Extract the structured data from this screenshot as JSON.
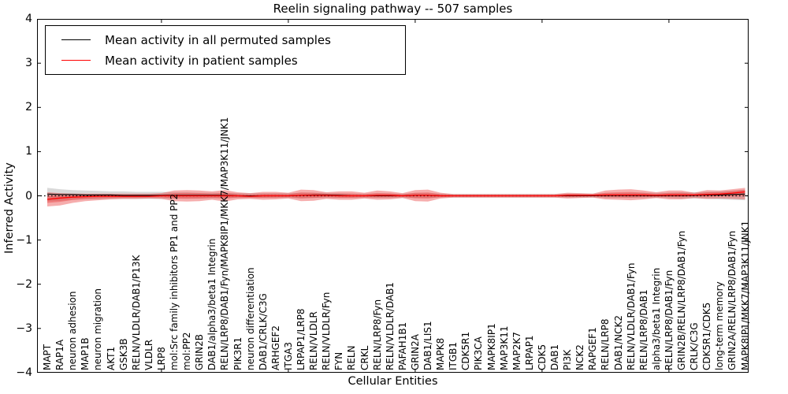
{
  "title": "Reelin signaling pathway -- 507 samples",
  "axes": {
    "xlabel": "Cellular Entities",
    "ylabel": "Inferred Activity"
  },
  "legend": {
    "items": [
      {
        "label": "Mean activity in all permuted samples",
        "color": "#000000"
      },
      {
        "label": "Mean activity in patient samples",
        "color": "#ff0000"
      }
    ]
  },
  "chart_data": {
    "type": "line",
    "title": "Reelin signaling pathway -- 507 samples",
    "xlabel": "Cellular Entities",
    "ylabel": "Inferred Activity",
    "ylim": [
      -4,
      4
    ],
    "yticks": [
      {
        "v": 4,
        "label": "4"
      },
      {
        "v": 3,
        "label": "3"
      },
      {
        "v": 2,
        "label": "2"
      },
      {
        "v": 1,
        "label": "1"
      },
      {
        "v": 0,
        "label": "0"
      },
      {
        "v": -1,
        "label": "−1"
      },
      {
        "v": -2,
        "label": "−2"
      },
      {
        "v": -3,
        "label": "−3"
      },
      {
        "v": -4,
        "label": "−4"
      }
    ],
    "xticks_every": 10,
    "grid": false,
    "legend_position": "upper left",
    "zero_line": {
      "style": "dotted",
      "color": "#000000",
      "y": 0
    },
    "band_colors": {
      "permuted": "rgba(128,128,128,0.30)",
      "patient": "rgba(233,60,60,0.42)"
    },
    "categories": [
      "MAPT",
      "RAP1A",
      "neuron adhesion",
      "MAP1B",
      "neuron migration",
      "AKT1",
      "GSK3B",
      "RELN/VLDLR/DAB1/P13K",
      "VLDLR",
      "LRP8",
      "mol:Src family inhibitors PP1 and PP2",
      "mol:PP2",
      "GRIN2B",
      "DAB1/alpha3/beta1 Integrin",
      "RELN/LRP8/DAB1/Fyn/MAPK8IP1/MKK7/MAP3K11/JNK1",
      "PIK3R1",
      "neuron differentiation",
      "DAB1/CRLK/C3G",
      "ARHGEF2",
      "ITGA3",
      "LRPAP1/LRP8",
      "RELN/VLDLR",
      "RELN/VLDLR/Fyn",
      "FYN",
      "RELN",
      "CRKL",
      "RELN/LRP8/Fyn",
      "RELN/VLDLR/DAB1",
      "PAFAH1B1",
      "GRIN2A",
      "DAB1/LIS1",
      "MAPK8",
      "ITGB1",
      "CDK5R1",
      "PIK3CA",
      "MAPK8IP1",
      "MAP3K11",
      "MAP2K7",
      "LRPAP1",
      "CDK5",
      "DAB1",
      "PI3K",
      "NCK2",
      "RAPGEF1",
      "RELN/LRP8",
      "DAB1/NCK2",
      "RELN/VLDLR/DAB1/Fyn",
      "RELN/LRP8/DAB1",
      "alpha3/beta1 Integrin",
      "RELN/LRP8/DAB1/Fyn",
      "GRIN2B/RELN/LRP8/DAB1/Fyn",
      "CRLK/C3G",
      "CDK5R1/CDK5",
      "long-term memory",
      "GRIN2A/RELN/LRP8/DAB1/Fyn",
      "MAPK8IP1/MKK7/MAP3K11/JNK1"
    ],
    "series": [
      {
        "name": "Mean activity in all permuted samples",
        "color": "#000000",
        "values": [
          0.04,
          0.03,
          0.03,
          0.02,
          0.02,
          0.02,
          0.01,
          0.01,
          0.01,
          0.01,
          0.01,
          0.01,
          0.01,
          0.01,
          0.01,
          0.0,
          0.0,
          0.0,
          0.0,
          0.0,
          0.01,
          0.02,
          0.02,
          0.01,
          0.0,
          0.0,
          0.0,
          0.0,
          0.0,
          0.01,
          0.01,
          0.0,
          0.0,
          0.0,
          0.0,
          0.0,
          0.0,
          0.0,
          0.0,
          0.0,
          0.0,
          0.0,
          0.0,
          0.0,
          0.01,
          0.01,
          0.01,
          0.01,
          0.0,
          0.01,
          0.01,
          0.01,
          0.02,
          0.02,
          0.03,
          0.04
        ],
        "band_upper": [
          0.18,
          0.15,
          0.13,
          0.12,
          0.11,
          0.1,
          0.1,
          0.09,
          0.09,
          0.09,
          0.08,
          0.08,
          0.07,
          0.07,
          0.07,
          0.06,
          0.06,
          0.06,
          0.06,
          0.06,
          0.07,
          0.07,
          0.07,
          0.06,
          0.05,
          0.05,
          0.05,
          0.05,
          0.05,
          0.06,
          0.06,
          0.05,
          0.04,
          0.04,
          0.04,
          0.04,
          0.04,
          0.04,
          0.04,
          0.04,
          0.04,
          0.05,
          0.05,
          0.05,
          0.06,
          0.06,
          0.07,
          0.07,
          0.07,
          0.07,
          0.08,
          0.08,
          0.09,
          0.1,
          0.12,
          0.14
        ],
        "band_lower": [
          -0.12,
          -0.11,
          -0.09,
          -0.08,
          -0.08,
          -0.07,
          -0.07,
          -0.07,
          -0.07,
          -0.07,
          -0.06,
          -0.06,
          -0.06,
          -0.06,
          -0.05,
          -0.05,
          -0.05,
          -0.05,
          -0.05,
          -0.05,
          -0.06,
          -0.05,
          -0.05,
          -0.05,
          -0.05,
          -0.05,
          -0.05,
          -0.05,
          -0.05,
          -0.05,
          -0.05,
          -0.04,
          -0.04,
          -0.04,
          -0.04,
          -0.04,
          -0.04,
          -0.04,
          -0.04,
          -0.04,
          -0.04,
          -0.04,
          -0.04,
          -0.04,
          -0.05,
          -0.05,
          -0.05,
          -0.05,
          -0.05,
          -0.05,
          -0.06,
          -0.06,
          -0.07,
          -0.08,
          -0.09,
          -0.1
        ]
      },
      {
        "name": "Mean activity in patient samples",
        "color": "#ff0000",
        "values": [
          -0.08,
          -0.05,
          -0.03,
          -0.02,
          -0.01,
          -0.01,
          -0.01,
          -0.01,
          -0.01,
          0.0,
          0.0,
          0.0,
          0.0,
          0.0,
          0.0,
          0.0,
          -0.01,
          0.0,
          0.0,
          0.0,
          0.01,
          0.01,
          0.01,
          0.0,
          0.0,
          0.0,
          0.01,
          0.01,
          0.0,
          0.01,
          0.01,
          0.0,
          0.0,
          0.0,
          0.0,
          0.0,
          0.0,
          0.0,
          0.0,
          0.0,
          0.0,
          0.01,
          0.01,
          0.01,
          0.02,
          0.02,
          0.02,
          0.02,
          0.01,
          0.02,
          0.02,
          0.02,
          0.03,
          0.04,
          0.06,
          0.09
        ],
        "band_upper": [
          0.08,
          0.06,
          0.05,
          0.05,
          0.05,
          0.05,
          0.05,
          0.05,
          0.05,
          0.06,
          0.12,
          0.13,
          0.12,
          0.1,
          0.13,
          0.08,
          0.06,
          0.09,
          0.09,
          0.07,
          0.14,
          0.13,
          0.08,
          0.1,
          0.1,
          0.07,
          0.12,
          0.1,
          0.06,
          0.13,
          0.14,
          0.07,
          0.04,
          0.04,
          0.04,
          0.04,
          0.04,
          0.04,
          0.04,
          0.04,
          0.04,
          0.07,
          0.06,
          0.05,
          0.12,
          0.14,
          0.15,
          0.12,
          0.08,
          0.12,
          0.12,
          0.07,
          0.13,
          0.12,
          0.15,
          0.18
        ],
        "band_lower": [
          -0.24,
          -0.22,
          -0.16,
          -0.12,
          -0.1,
          -0.08,
          -0.07,
          -0.07,
          -0.06,
          -0.07,
          -0.12,
          -0.13,
          -0.12,
          -0.09,
          -0.13,
          -0.08,
          -0.07,
          -0.09,
          -0.08,
          -0.06,
          -0.12,
          -0.11,
          -0.07,
          -0.09,
          -0.09,
          -0.06,
          -0.09,
          -0.08,
          -0.05,
          -0.12,
          -0.13,
          -0.06,
          -0.04,
          -0.04,
          -0.04,
          -0.04,
          -0.04,
          -0.04,
          -0.04,
          -0.04,
          -0.04,
          -0.06,
          -0.05,
          -0.04,
          -0.08,
          -0.09,
          -0.1,
          -0.08,
          -0.05,
          -0.08,
          -0.08,
          -0.05,
          -0.07,
          -0.06,
          -0.07,
          -0.08
        ]
      }
    ]
  }
}
